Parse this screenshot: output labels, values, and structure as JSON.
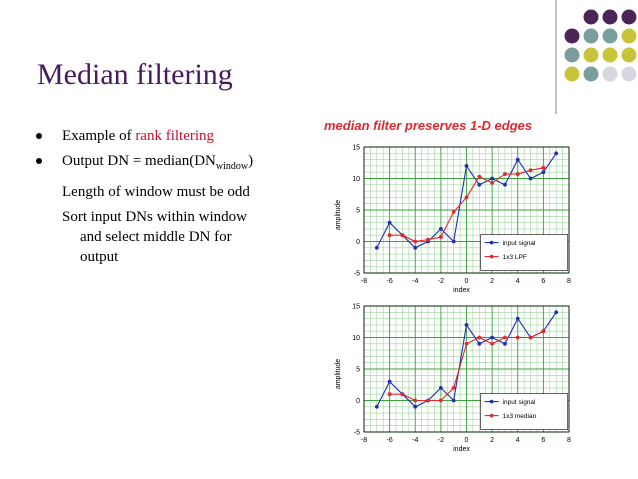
{
  "slide": {
    "title": "Median filtering",
    "b1_text": "Example of ",
    "b1_link": "rank filtering",
    "b2_text": "Output DN = median(DN",
    "b2_sub": "window",
    "b2_close": ")",
    "line3": "Length of window must be odd",
    "line4": "Sort input DNs within window",
    "line5": "and select middle DN for",
    "line6": "output"
  },
  "figure_title": "median filter preserves 1-D edges",
  "colors": {
    "title": "#4a1a5e",
    "accent": "#c8102e",
    "dot_purple": "#4b2458",
    "dot_teal": "#7a9e9c",
    "dot_yellow": "#c8c43a",
    "dot_gray": "#d7d7df"
  },
  "chart_data": [
    {
      "type": "line",
      "title": "",
      "xlabel": "index",
      "ylabel": "amplitude",
      "xlim": [
        -8,
        8
      ],
      "ylim": [
        -5,
        15
      ],
      "xticks": [
        -8,
        -6,
        -4,
        -2,
        0,
        2,
        4,
        6,
        8
      ],
      "yticks": [
        -5,
        0,
        5,
        10,
        15
      ],
      "grid": true,
      "legend_position": "bottom-right",
      "series": [
        {
          "name": "input signal",
          "color": "#1c2fb0",
          "x": [
            -7,
            -6,
            -5,
            -4,
            -3,
            -2,
            -1,
            0,
            1,
            2,
            3,
            4,
            5,
            6,
            7
          ],
          "y": [
            -1,
            3,
            1,
            -1,
            0,
            2,
            0,
            12,
            9,
            10,
            9,
            13,
            10,
            11,
            14
          ]
        },
        {
          "name": "1x3 LPF",
          "color": "#e0282e",
          "x": [
            -6,
            -5,
            -4,
            -3,
            -2,
            -1,
            0,
            1,
            2,
            3,
            4,
            5,
            6
          ],
          "y": [
            1,
            1,
            0,
            0.3,
            0.7,
            4.7,
            7,
            10.3,
            9.3,
            10.7,
            10.7,
            11.3,
            11.7
          ]
        }
      ]
    },
    {
      "type": "line",
      "title": "",
      "xlabel": "index",
      "ylabel": "amplitude",
      "xlim": [
        -8,
        8
      ],
      "ylim": [
        -5,
        15
      ],
      "xticks": [
        -8,
        -6,
        -4,
        -2,
        0,
        2,
        4,
        6,
        8
      ],
      "yticks": [
        -5,
        0,
        5,
        10,
        15
      ],
      "grid": true,
      "legend_position": "bottom-right",
      "series": [
        {
          "name": "input signal",
          "color": "#1c2fb0",
          "x": [
            -7,
            -6,
            -5,
            -4,
            -3,
            -2,
            -1,
            0,
            1,
            2,
            3,
            4,
            5,
            6,
            7
          ],
          "y": [
            -1,
            3,
            1,
            -1,
            0,
            2,
            0,
            12,
            9,
            10,
            9,
            13,
            10,
            11,
            14
          ]
        },
        {
          "name": "1x3 median",
          "color": "#e0282e",
          "x": [
            -6,
            -5,
            -4,
            -3,
            -2,
            -1,
            0,
            1,
            2,
            3,
            4,
            5,
            6
          ],
          "y": [
            1,
            1,
            0,
            0,
            0,
            2,
            9,
            10,
            9,
            10,
            10,
            10,
            11
          ]
        }
      ]
    }
  ]
}
